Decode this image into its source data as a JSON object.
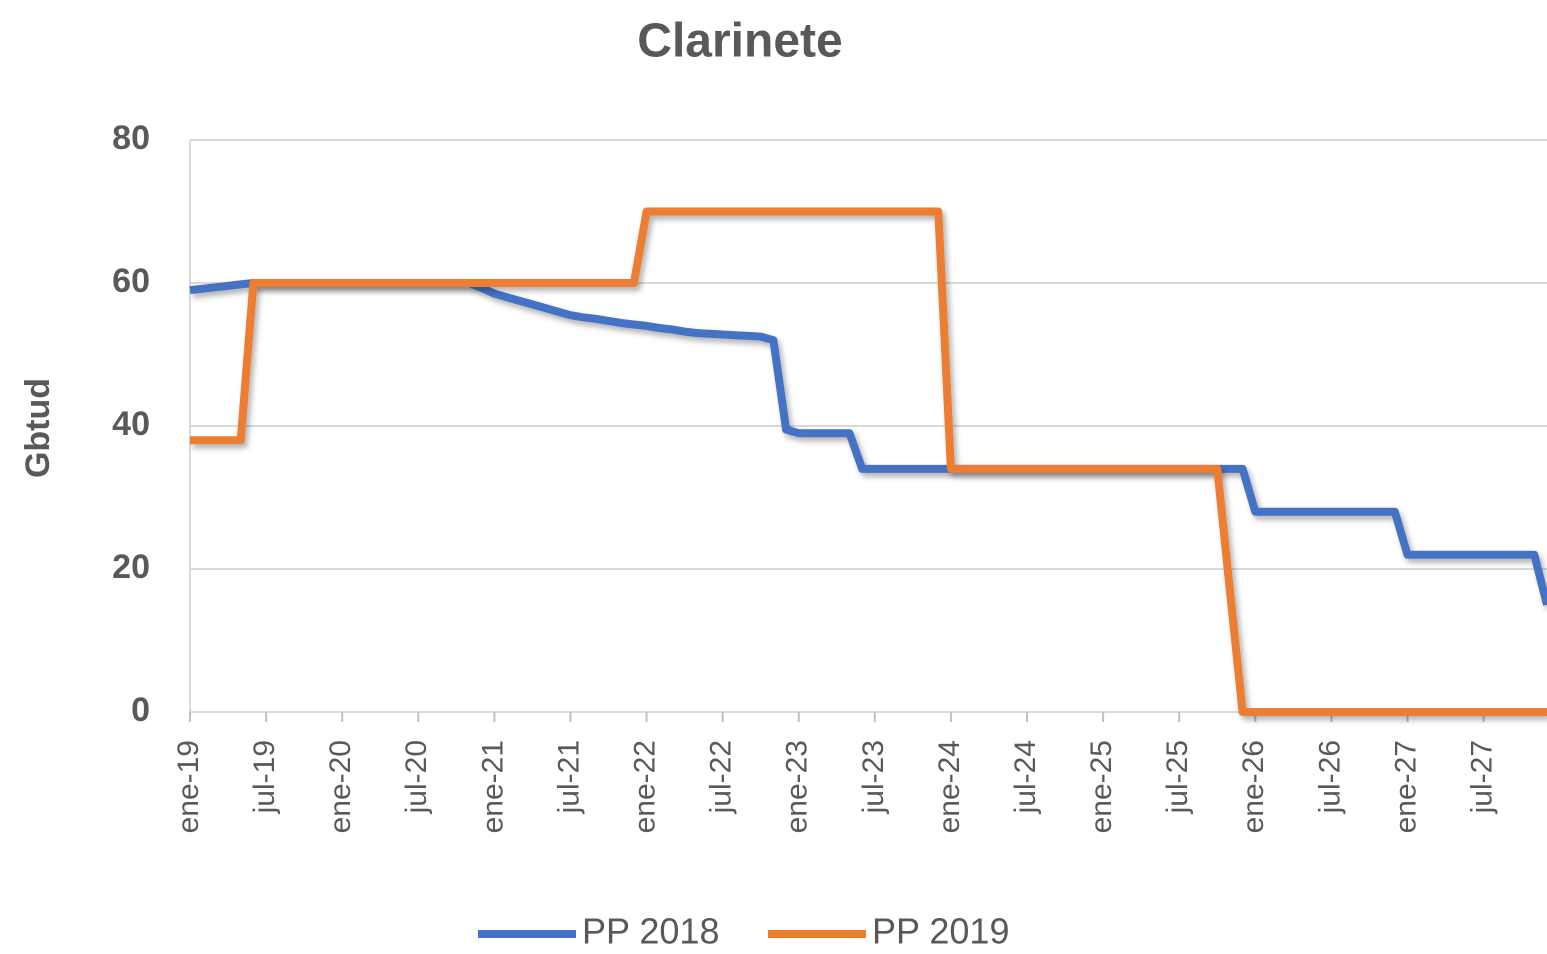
{
  "chart_data": {
    "type": "line",
    "title": "Clarinete",
    "y_label": "Gbtud",
    "categories": [
      "ene-19",
      null,
      null,
      null,
      null,
      null,
      "jul-19",
      null,
      null,
      null,
      null,
      null,
      "ene-20",
      null,
      null,
      null,
      null,
      null,
      "jul-20",
      null,
      null,
      null,
      null,
      null,
      "ene-21",
      null,
      null,
      null,
      null,
      null,
      "jul-21",
      null,
      null,
      null,
      null,
      null,
      "ene-22",
      null,
      null,
      null,
      null,
      null,
      "jul-22",
      null,
      null,
      null,
      null,
      null,
      "ene-23",
      null,
      null,
      null,
      null,
      null,
      "jul-23",
      null,
      null,
      null,
      null,
      null,
      "ene-24",
      null,
      null,
      null,
      null,
      null,
      "jul-24",
      null,
      null,
      null,
      null,
      null,
      "ene-25",
      null,
      null,
      null,
      null,
      null,
      "jul-25",
      null,
      null,
      null,
      null,
      null,
      "ene-26",
      null,
      null,
      null,
      null,
      null,
      "jul-26",
      null,
      null,
      null,
      null,
      null,
      "ene-27",
      null,
      null,
      null,
      null,
      null,
      "jul-27",
      null,
      null,
      null,
      null,
      null
    ],
    "series": [
      {
        "name": "PP 2018",
        "color": "#4472c4",
        "values": [
          59,
          59.2,
          59.4,
          59.6,
          59.8,
          60,
          60,
          60,
          60,
          60,
          60,
          60,
          60,
          60,
          60,
          60,
          60,
          60,
          60,
          60,
          60,
          60,
          60,
          59.3,
          58.5,
          58,
          57.5,
          57,
          56.5,
          56,
          55.5,
          55.2,
          55,
          54.7,
          54.4,
          54.2,
          54,
          53.7,
          53.5,
          53.2,
          53,
          52.9,
          52.8,
          52.7,
          52.6,
          52.5,
          52,
          39.5,
          39,
          39,
          39,
          39,
          39,
          34,
          34,
          34,
          34,
          34,
          34,
          34,
          34,
          34,
          34,
          34,
          34,
          34,
          34,
          34,
          34,
          34,
          34,
          34,
          34,
          34,
          34,
          34,
          34,
          34,
          34,
          34,
          34,
          34,
          34,
          34,
          28,
          28,
          28,
          28,
          28,
          28,
          28,
          28,
          28,
          28,
          28,
          28,
          22,
          22,
          22,
          22,
          22,
          22,
          22,
          22,
          22,
          22,
          22,
          15
        ]
      },
      {
        "name": "PP 2019",
        "color": "#ed7d31",
        "values": [
          38,
          38,
          38,
          38,
          38,
          60,
          60,
          60,
          60,
          60,
          60,
          60,
          60,
          60,
          60,
          60,
          60,
          60,
          60,
          60,
          60,
          60,
          60,
          60,
          60,
          60,
          60,
          60,
          60,
          60,
          60,
          60,
          60,
          60,
          60,
          60,
          70,
          70,
          70,
          70,
          70,
          70,
          70,
          70,
          70,
          70,
          70,
          70,
          70,
          70,
          70,
          70,
          70,
          70,
          70,
          70,
          70,
          70,
          70,
          70,
          34,
          34,
          34,
          34,
          34,
          34,
          34,
          34,
          34,
          34,
          34,
          34,
          34,
          34,
          34,
          34,
          34,
          34,
          34,
          34,
          34,
          34,
          17,
          0,
          0,
          0,
          0,
          0,
          0,
          0,
          0,
          0,
          0,
          0,
          0,
          0,
          0,
          0,
          0,
          0,
          0,
          0,
          0,
          0,
          0,
          0,
          0,
          0
        ]
      }
    ],
    "ylim": [
      0,
      80
    ],
    "yticks": [
      0,
      20,
      40,
      60,
      80
    ],
    "grid": true
  }
}
